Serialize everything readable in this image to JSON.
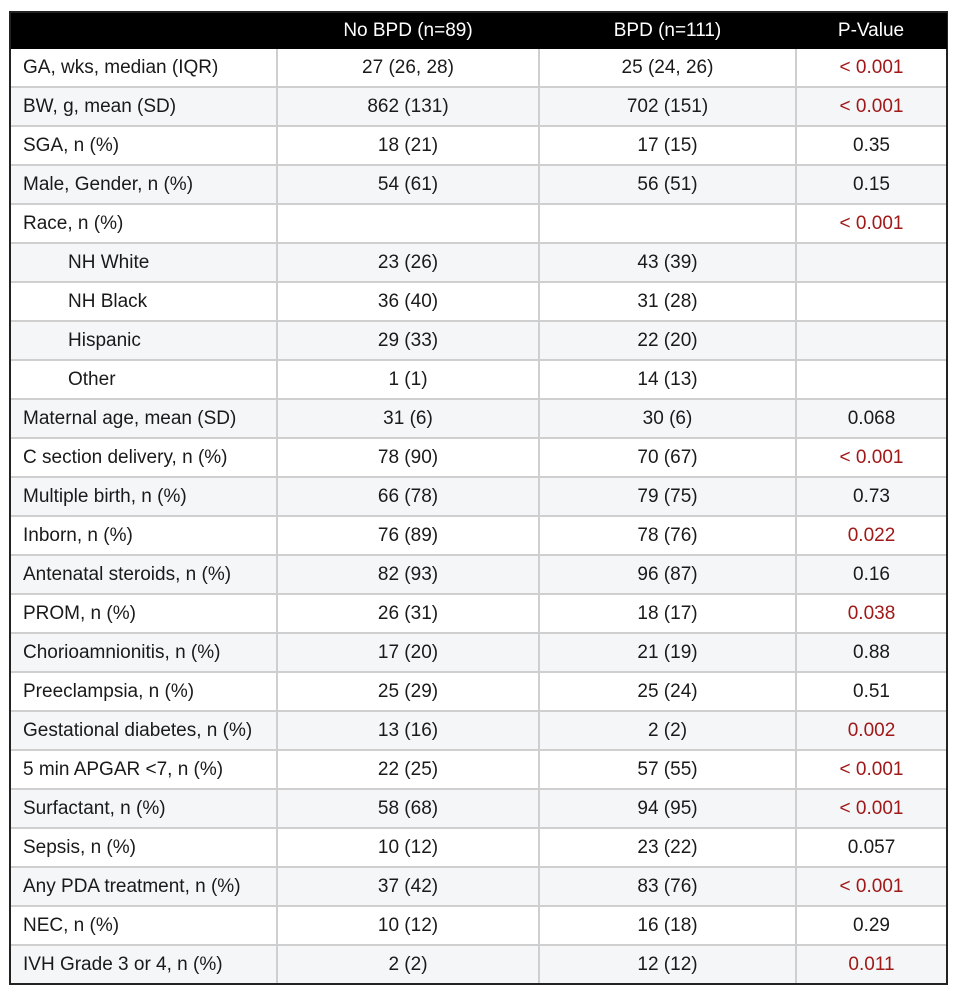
{
  "table": {
    "headers": [
      "",
      "No BPD (n=89)",
      "BPD (n=111)",
      "P-Value"
    ],
    "rows": [
      {
        "label": "GA, wks, median (IQR)",
        "no_bpd": "27 (26, 28)",
        "bpd": "25 (24, 26)",
        "p": "< 0.001",
        "sig": true,
        "sub": false
      },
      {
        "label": "BW, g, mean (SD)",
        "no_bpd": "862 (131)",
        "bpd": "702 (151)",
        "p": "< 0.001",
        "sig": true,
        "sub": false
      },
      {
        "label": "SGA, n (%)",
        "no_bpd": "18 (21)",
        "bpd": "17 (15)",
        "p": "0.35",
        "sig": false,
        "sub": false
      },
      {
        "label": "Male, Gender, n (%)",
        "no_bpd": "54 (61)",
        "bpd": "56 (51)",
        "p": "0.15",
        "sig": false,
        "sub": false
      },
      {
        "label": "Race, n (%)",
        "no_bpd": "",
        "bpd": "",
        "p": "< 0.001",
        "sig": true,
        "sub": false
      },
      {
        "label": "NH White",
        "no_bpd": "23 (26)",
        "bpd": "43 (39)",
        "p": "",
        "sig": false,
        "sub": true
      },
      {
        "label": "NH Black",
        "no_bpd": "36 (40)",
        "bpd": "31 (28)",
        "p": "",
        "sig": false,
        "sub": true
      },
      {
        "label": "Hispanic",
        "no_bpd": "29 (33)",
        "bpd": "22 (20)",
        "p": "",
        "sig": false,
        "sub": true
      },
      {
        "label": "Other",
        "no_bpd": "1 (1)",
        "bpd": "14 (13)",
        "p": "",
        "sig": false,
        "sub": true
      },
      {
        "label": "Maternal age, mean (SD)",
        "no_bpd": "31 (6)",
        "bpd": "30 (6)",
        "p": "0.068",
        "sig": false,
        "sub": false
      },
      {
        "label": "C section delivery, n (%)",
        "no_bpd": "78 (90)",
        "bpd": "70 (67)",
        "p": "< 0.001",
        "sig": true,
        "sub": false
      },
      {
        "label": "Multiple birth, n (%)",
        "no_bpd": "66 (78)",
        "bpd": "79 (75)",
        "p": "0.73",
        "sig": false,
        "sub": false
      },
      {
        "label": "Inborn, n (%)",
        "no_bpd": "76 (89)",
        "bpd": "78 (76)",
        "p": "0.022",
        "sig": true,
        "sub": false
      },
      {
        "label": "Antenatal steroids, n (%)",
        "no_bpd": "82 (93)",
        "bpd": "96 (87)",
        "p": "0.16",
        "sig": false,
        "sub": false
      },
      {
        "label": "PROM, n (%)",
        "no_bpd": "26 (31)",
        "bpd": "18 (17)",
        "p": "0.038",
        "sig": true,
        "sub": false
      },
      {
        "label": "Chorioamnionitis, n (%)",
        "no_bpd": "17 (20)",
        "bpd": "21 (19)",
        "p": "0.88",
        "sig": false,
        "sub": false
      },
      {
        "label": "Preeclampsia, n (%)",
        "no_bpd": "25 (29)",
        "bpd": "25 (24)",
        "p": "0.51",
        "sig": false,
        "sub": false
      },
      {
        "label": "Gestational diabetes, n (%)",
        "no_bpd": "13 (16)",
        "bpd": "2 (2)",
        "p": "0.002",
        "sig": true,
        "sub": false
      },
      {
        "label": "5 min APGAR <7, n (%)",
        "no_bpd": "22 (25)",
        "bpd": "57 (55)",
        "p": "< 0.001",
        "sig": true,
        "sub": false
      },
      {
        "label": "Surfactant, n (%)",
        "no_bpd": "58 (68)",
        "bpd": "94 (95)",
        "p": "< 0.001",
        "sig": true,
        "sub": false
      },
      {
        "label": "Sepsis, n (%)",
        "no_bpd": "10 (12)",
        "bpd": "23 (22)",
        "p": "0.057",
        "sig": false,
        "sub": false
      },
      {
        "label": "Any PDA treatment, n (%)",
        "no_bpd": "37 (42)",
        "bpd": "83 (76)",
        "p": "< 0.001",
        "sig": true,
        "sub": false
      },
      {
        "label": "NEC, n (%)",
        "no_bpd": "10 (12)",
        "bpd": "16 (18)",
        "p": "0.29",
        "sig": false,
        "sub": false
      },
      {
        "label": "IVH Grade 3 or 4, n (%)",
        "no_bpd": "2 (2)",
        "bpd": "12 (12)",
        "p": "0.011",
        "sig": true,
        "sub": false
      }
    ]
  },
  "colors": {
    "header_bg": "#000000",
    "header_text": "#ffffff",
    "significant_p": "#a01818",
    "text": "#1a1a1a",
    "grid": "#cfcfcf",
    "stripe": "#f5f6f8"
  }
}
